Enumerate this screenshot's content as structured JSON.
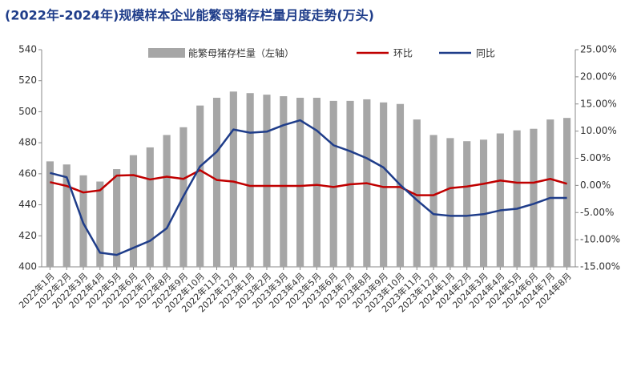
{
  "chart_data": {
    "type": "bar-line",
    "title": "(2022年-2024年)规模样本企业能繁母猪存栏量月度走势(万头)",
    "categories": [
      "2022年1月",
      "2022年2月",
      "2022年3月",
      "2022年4月",
      "2022年5月",
      "2022年6月",
      "2022年7月",
      "2022年8月",
      "2022年9月",
      "2022年10月",
      "2022年11月",
      "2022年12月",
      "2023年1月",
      "2023年2月",
      "2023年3月",
      "2023年4月",
      "2023年5月",
      "2023年6月",
      "2023年7月",
      "2023年8月",
      "2023年9月",
      "2023年10月",
      "2023年11月",
      "2023年12月",
      "2024年1月",
      "2024年2月",
      "2024年3月",
      "2024年4月",
      "2024年5月",
      "2024年6月",
      "2024年7月",
      "2024年8月"
    ],
    "series": [
      {
        "name": "能繁母猪存栏量（左轴）",
        "type": "bar",
        "color": "#a6a6a6",
        "values": [
          468,
          466,
          459,
          455,
          463,
          472,
          477,
          485,
          490,
          504,
          509,
          513,
          512,
          511,
          510,
          509,
          509,
          507,
          507,
          508,
          506,
          505,
          495,
          485,
          483,
          481,
          482,
          486,
          488,
          489,
          495,
          496
        ]
      },
      {
        "name": "环比",
        "type": "line",
        "axis": "y2",
        "color": "#c00000",
        "values": [
          0.6,
          -0.1,
          -1.3,
          -0.9,
          1.8,
          1.9,
          1.1,
          1.6,
          1.2,
          2.8,
          1.0,
          0.7,
          -0.1,
          -0.1,
          -0.1,
          -0.1,
          0.1,
          -0.3,
          0.2,
          0.4,
          -0.3,
          -0.3,
          -1.8,
          -1.8,
          -0.5,
          -0.2,
          0.3,
          0.9,
          0.5,
          0.5,
          1.2,
          0.3
        ]
      },
      {
        "name": "同比",
        "type": "line",
        "axis": "y2",
        "color": "#1f3d8a",
        "values": [
          2.3,
          1.5,
          -7,
          -12.4,
          -12.8,
          -11.5,
          -10.2,
          -7.9,
          -2,
          3.5,
          6.2,
          10.3,
          9.7,
          9.9,
          11.1,
          12.0,
          10.1,
          7.4,
          6.3,
          5.0,
          3.3,
          0.1,
          -2.7,
          -5.3,
          -5.6,
          -5.6,
          -5.3,
          -4.6,
          -4.3,
          -3.4,
          -2.3,
          -2.3
        ]
      }
    ],
    "ylim": [
      400,
      540
    ],
    "yticks": [
      400,
      420,
      440,
      460,
      480,
      500,
      520,
      540
    ],
    "y2lim": [
      -15,
      25
    ],
    "y2ticks": [
      {
        "value": -15,
        "label": "-15.00%"
      },
      {
        "value": -10,
        "label": "-10.00%"
      },
      {
        "value": -5,
        "label": "-5.00%"
      },
      {
        "value": 0,
        "label": "0.00%"
      },
      {
        "value": 5,
        "label": "5.00%"
      },
      {
        "value": 10,
        "label": "10.00%"
      },
      {
        "value": 15,
        "label": "15.00%"
      },
      {
        "value": 20,
        "label": "20.00%"
      },
      {
        "value": 25,
        "label": "25.00%"
      }
    ],
    "grid": false
  }
}
